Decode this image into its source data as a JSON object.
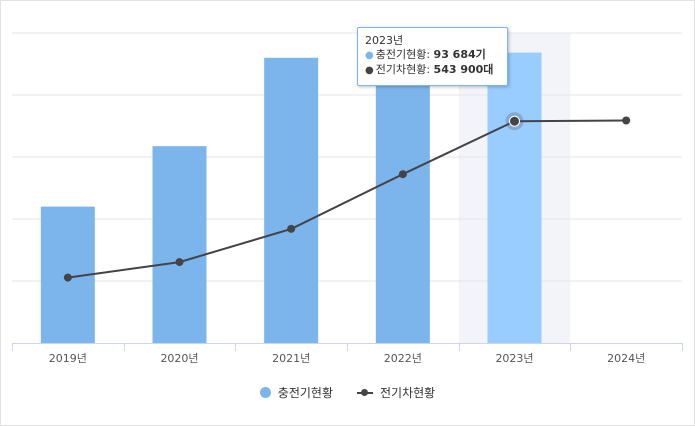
{
  "chart_data": {
    "type": "bar+line",
    "categories": [
      "2019년",
      "2020년",
      "2021년",
      "2022년",
      "2023년",
      "2024년"
    ],
    "series": [
      {
        "name": "충전기현황",
        "type": "bar",
        "unit": "기",
        "color": "#7cb5ec",
        "highlight_color": "#99ccff",
        "values": [
          44000,
          63500,
          92000,
          92000,
          93684,
          null
        ]
      },
      {
        "name": "전기차현황",
        "type": "line",
        "unit": "대",
        "color": "#434348",
        "values": [
          89900,
          134900,
          231400,
          390000,
          543900,
          546000
        ]
      }
    ],
    "bar_ylim": [
      0,
      100000
    ],
    "line_ylim": [
      -100000,
      800000
    ],
    "grid": true,
    "legend_position": "bottom",
    "highlighted_category": "2023년"
  },
  "tooltip": {
    "header": "2023년",
    "row1_name": "충전기현황",
    "row1_value": "93 684기",
    "row2_name": "전기차현황",
    "row2_value": "543 900대",
    "border_color": "#7cb5ec"
  },
  "legend": {
    "bar_label": "충전기현황",
    "line_label": "전기차현황"
  },
  "colors": {
    "bar": "#7cb5ec",
    "bar_highlight": "#99ccff",
    "line": "#434348",
    "grid": "#e6e6e6",
    "axis": "#ccd6eb",
    "band": "#f2f4fa"
  }
}
